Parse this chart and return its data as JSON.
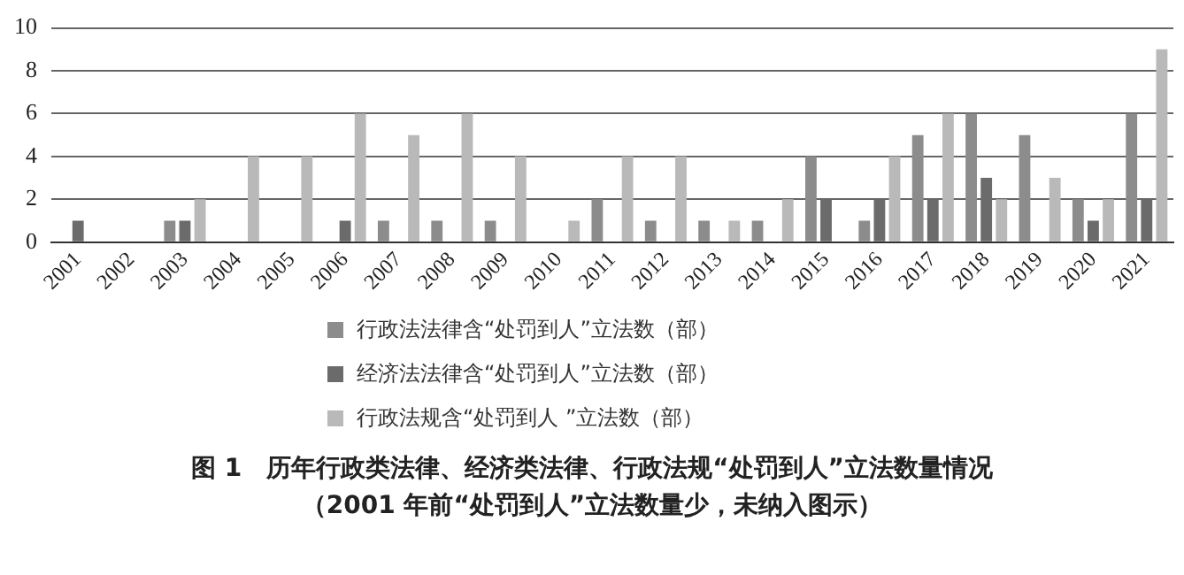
{
  "chart_data": {
    "type": "bar",
    "title": "图 1　历年行政类法律、经济类法律、行政法规“处罚到人”立法数量情况",
    "subtitle": "（2001 年前“处罚到人”立法数量少，未纳入图示）",
    "categories": [
      "2001",
      "2002",
      "2003",
      "2004",
      "2005",
      "2006",
      "2007",
      "2008",
      "2009",
      "2010",
      "2011",
      "2012",
      "2013",
      "2014",
      "2015",
      "2016",
      "2017",
      "2018",
      "2019",
      "2020",
      "2021"
    ],
    "series": [
      {
        "name": "行政法法律含“处罚到人”立法数（部）",
        "color": "#8c8c8c",
        "values": [
          0,
          0,
          1,
          0,
          0,
          0,
          1,
          1,
          1,
          0,
          2,
          1,
          1,
          1,
          4,
          1,
          5,
          6,
          5,
          2,
          6
        ]
      },
      {
        "name": "经济法法律含“处罚到人”立法数（部）",
        "color": "#6b6b6b",
        "values": [
          1,
          0,
          1,
          0,
          0,
          1,
          0,
          0,
          0,
          0,
          0,
          0,
          0,
          0,
          2,
          2,
          2,
          3,
          0,
          1,
          2
        ]
      },
      {
        "name": "行政法规含“处罚到人 ”立法数（部）",
        "color": "#b9b9b9",
        "values": [
          0,
          0,
          2,
          4,
          4,
          6,
          5,
          6,
          4,
          1,
          4,
          4,
          1,
          2,
          0,
          4,
          6,
          2,
          3,
          2,
          9
        ]
      }
    ],
    "ylim": [
      0,
      10
    ],
    "yticks": [
      0,
      2,
      4,
      6,
      8,
      10
    ],
    "grid": "y",
    "legend": "bottom"
  }
}
